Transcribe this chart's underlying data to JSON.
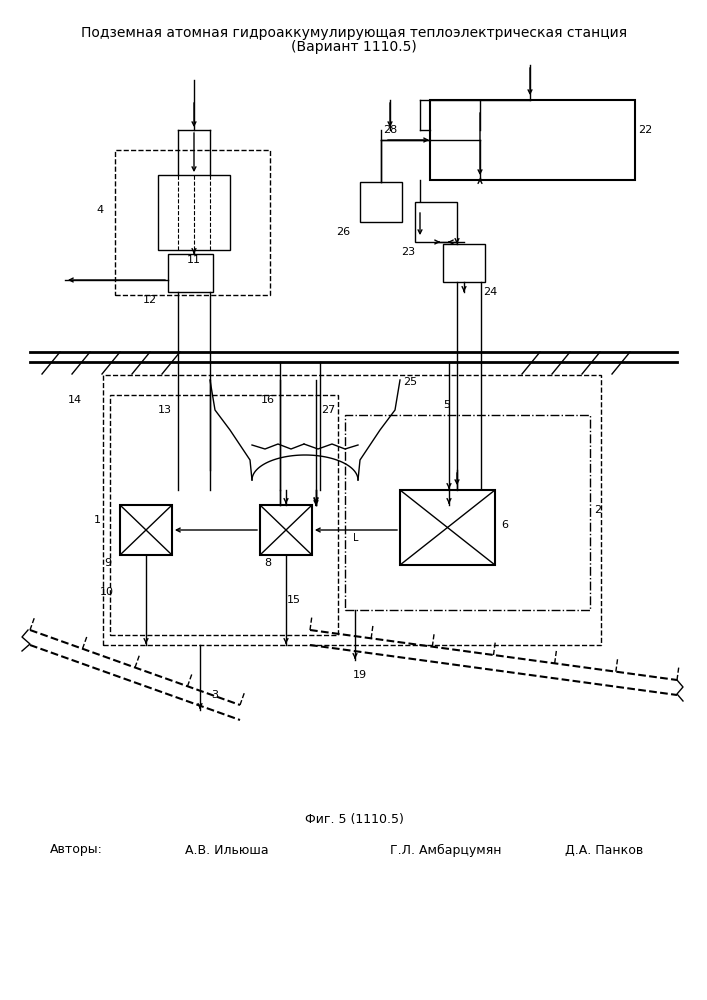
{
  "title_line1": "Подземная атомная гидроаккумулирующая теплоэлектрическая станция",
  "title_line2": "(Вариант 1110.5)",
  "fig_caption": "Фиг. 5 (1110.5)",
  "authors_label": "Авторы:",
  "author1": "А.В. Ильюша",
  "author2": "Г.Л. Амбарцумян",
  "author3": "Д.А. Панков",
  "bg_color": "#ffffff",
  "line_color": "#000000",
  "title_fontsize": 10,
  "label_fontsize": 9,
  "num_fontsize": 8
}
